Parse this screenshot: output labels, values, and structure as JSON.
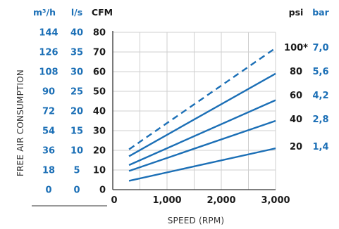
{
  "chart_data": {
    "type": "line",
    "xlabel": "SPEED (RPM)",
    "ylabel": "FREE AIR CONSUMPTION",
    "x_ticks": [
      "0",
      "1,000",
      "2,000",
      "3,000"
    ],
    "xlim": [
      0,
      3000
    ],
    "ylim": [
      0,
      80
    ],
    "grid": true,
    "left_axes": [
      {
        "header": "m³/h",
        "ticks": [
          "144",
          "126",
          "108",
          "90",
          "72",
          "54",
          "36",
          "18",
          "0"
        ]
      },
      {
        "header": "l/s",
        "ticks": [
          "40",
          "35",
          "30",
          "25",
          "20",
          "15",
          "10",
          "5",
          "0"
        ]
      },
      {
        "header": "CFM",
        "ticks": [
          "80",
          "70",
          "60",
          "50",
          "40",
          "30",
          "20",
          "10",
          "0"
        ]
      }
    ],
    "right_axes": [
      {
        "header": "psi",
        "labels": [
          "100*",
          "80",
          "60",
          "40",
          "20"
        ]
      },
      {
        "header": "bar",
        "labels": [
          "7,0",
          "5,6",
          "4,2",
          "2,8",
          "1,4"
        ]
      }
    ],
    "series": [
      {
        "psi": "100*",
        "bar": "7,0",
        "style": "dashed",
        "x": [
          300,
          3000
        ],
        "y": [
          20.5,
          72
        ]
      },
      {
        "psi": "80",
        "bar": "5,6",
        "style": "solid",
        "x": [
          300,
          3000
        ],
        "y": [
          17,
          59
        ]
      },
      {
        "psi": "60",
        "bar": "4,2",
        "style": "solid",
        "x": [
          300,
          3000
        ],
        "y": [
          12.5,
          45.5
        ]
      },
      {
        "psi": "40",
        "bar": "2,8",
        "style": "solid",
        "x": [
          300,
          3000
        ],
        "y": [
          9.5,
          35
        ]
      },
      {
        "psi": "20",
        "bar": "1,4",
        "style": "solid",
        "x": [
          300,
          3000
        ],
        "y": [
          4.5,
          21
        ]
      }
    ],
    "colors": {
      "line": "#1b6fb6",
      "grid": "#cfcfcf",
      "axis": "#333333",
      "blue_text": "#1b6fb6",
      "dark_text": "#1a1a1a"
    }
  }
}
